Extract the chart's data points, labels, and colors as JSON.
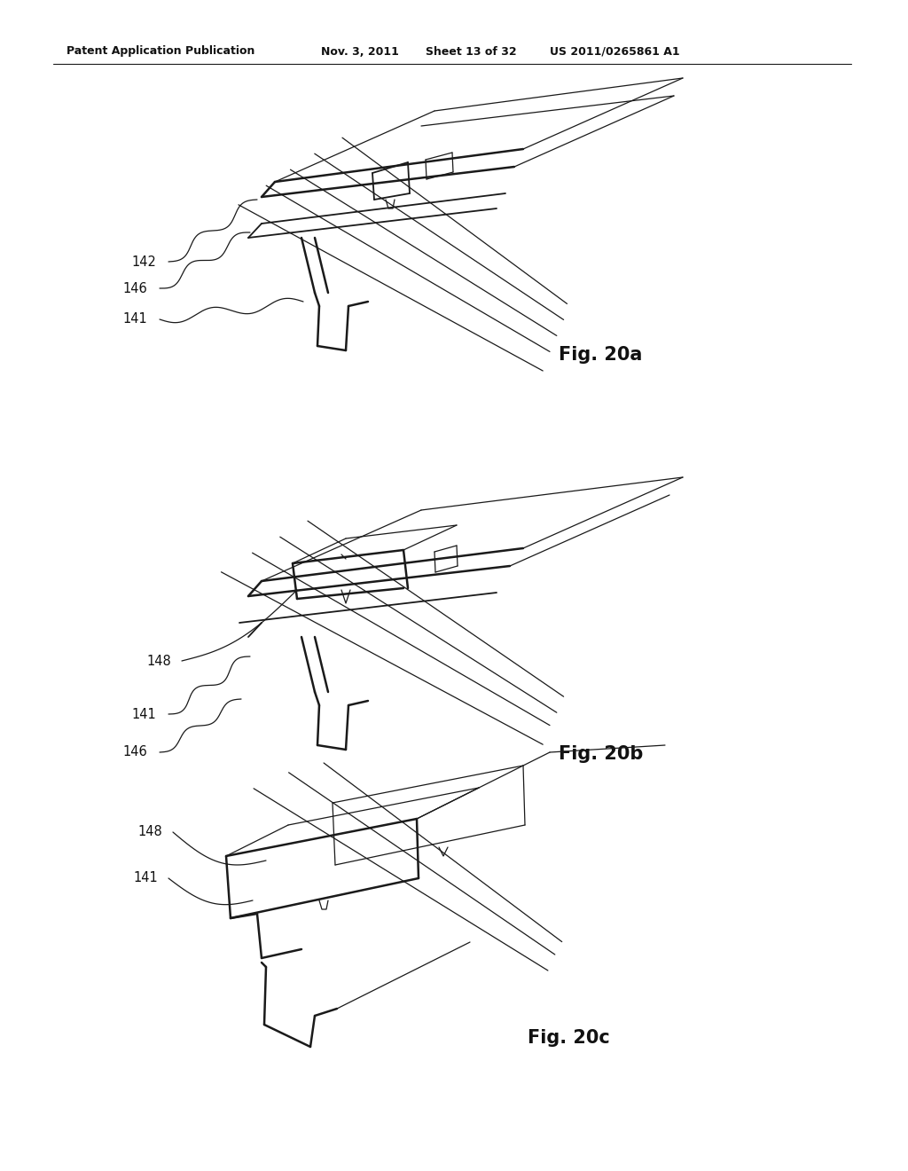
{
  "bg_color": "#ffffff",
  "header_left": "Patent Application Publication",
  "header_mid": "Nov. 3, 2011   Sheet 13 of 32",
  "header_right": "US 2011/0265861 A1",
  "fig_labels": [
    "Fig. 20a",
    "Fig. 20b",
    "Fig. 20c"
  ],
  "line_color": "#1a1a1a",
  "text_color": "#111111",
  "header_fontsize": 9.5,
  "fig_label_fontsize": 15,
  "annotation_fontsize": 10.5
}
